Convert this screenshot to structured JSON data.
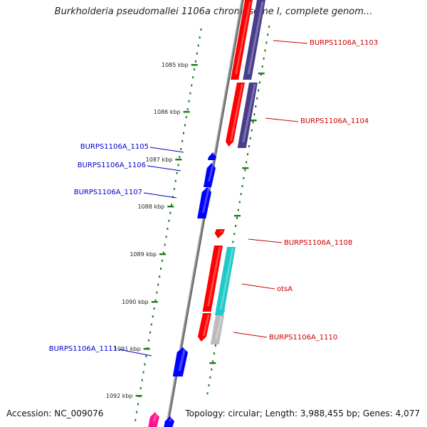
{
  "title": "Burkholderia pseudomallei 1106a chromosome I, complete genom...",
  "accession": "Accession: NC_009076",
  "topology": "Topology: circular; Length: 3,988,455 bp; Genes: 4,077",
  "colors": {
    "backbone": "#888888",
    "ticks": "#1b7a1b",
    "gene_red": "#ff0000",
    "gene_blue": "#0000ff",
    "gene_navy": "#483d8b",
    "gene_cyan": "#20c8c8",
    "gene_gray": "#bbbbbb",
    "gene_pink": "#ff1493",
    "label_red": "#cc0000",
    "label_blue": "#0000cc"
  },
  "kbp_labels": [
    "1085 kbp",
    "1086 kbp",
    "1087 kbp",
    "1088 kbp",
    "1089 kbp",
    "1090 kbp",
    "1091 kbp",
    "1092 kbp"
  ],
  "gene_labels": [
    "BURPS1106A_1103",
    "BURPS1106A_1104",
    "BURPS1106A_1105",
    "BURPS1106A_1106",
    "BURPS1106A_1107",
    "BURPS1106A_1108",
    "otsA",
    "BURPS1106A_1110",
    "BURPS1106A_1111"
  ]
}
